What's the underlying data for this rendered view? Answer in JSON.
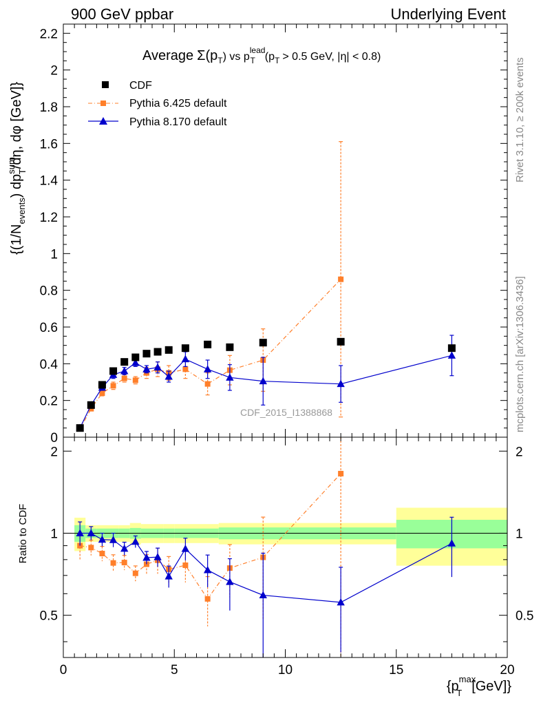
{
  "header": {
    "left": "900 GeV ppbar",
    "right": "Underlying Event"
  },
  "side_labels": {
    "rivet": "Rivet 3.1.10, ≥ 200k events",
    "mcplots": "mcplots.cern.ch [arXiv:1306.3436]"
  },
  "chart_data": {
    "type": "scatter",
    "title_parts": {
      "avg": "Average",
      "sigma": "Σ(p",
      "t1": "T",
      "close": ") vs p",
      "t2": "T",
      "lead": "lead",
      "cond": "(p",
      "t3": "T",
      "cond_rest": "> 0.5 GeV, |η| < 0.8)"
    },
    "ylabel_parts": {
      "a": "{(1/N",
      "events": "events",
      "b": ") dp",
      "T": "T",
      "sum": "sum",
      "c": "/dη, dφ [GeV]}"
    },
    "xlabel_parts": {
      "a": "{p",
      "T": "T",
      "max": "max",
      "b": "[GeV]}"
    },
    "ratio_ylabel": "Ratio to CDF",
    "watermark": "CDF_2015_I1388868",
    "xlim": [
      0,
      20
    ],
    "ylim": [
      0,
      2.25
    ],
    "ratio_ylim": [
      0.35,
      2.25
    ],
    "x_ticks": [
      "0",
      "5",
      "10",
      "15",
      "20"
    ],
    "y_ticks": [
      {
        "v": 0,
        "l": "0"
      },
      {
        "v": 0.2,
        "l": "0.2"
      },
      {
        "v": 0.4,
        "l": "0.4"
      },
      {
        "v": 0.6,
        "l": "0.6"
      },
      {
        "v": 0.8,
        "l": "0.8"
      },
      {
        "v": 1,
        "l": "1"
      },
      {
        "v": 1.2,
        "l": "1.2"
      },
      {
        "v": 1.4,
        "l": "1.4"
      },
      {
        "v": 1.6,
        "l": "1.6"
      },
      {
        "v": 1.8,
        "l": "1.8"
      },
      {
        "v": 2,
        "l": "2"
      },
      {
        "v": 2.2,
        "l": "2.2"
      }
    ],
    "ratio_ticks": [
      {
        "v": 0.5,
        "l": "0.5"
      },
      {
        "v": 1,
        "l": "1"
      },
      {
        "v": 2,
        "l": "2"
      }
    ],
    "cdf_bins": [
      [
        0.5,
        1.0
      ],
      [
        1.0,
        1.5
      ],
      [
        1.5,
        2.0
      ],
      [
        2.0,
        2.5
      ],
      [
        2.5,
        3.0
      ],
      [
        3.0,
        3.5
      ],
      [
        3.5,
        4.0
      ],
      [
        4.0,
        4.5
      ],
      [
        4.5,
        5.0
      ],
      [
        5.0,
        6.0
      ],
      [
        6.0,
        7.0
      ],
      [
        7.0,
        8.0
      ],
      [
        8.0,
        10.0
      ],
      [
        10.0,
        15.0
      ],
      [
        15.0,
        20.0
      ]
    ],
    "series": [
      {
        "name": "CDF",
        "color": "#000000",
        "marker": "square",
        "x": [
          0.75,
          1.25,
          1.75,
          2.25,
          2.75,
          3.25,
          3.75,
          4.25,
          4.75,
          5.5,
          6.5,
          7.5,
          9.0,
          12.5,
          17.5
        ],
        "y": [
          0.05,
          0.175,
          0.285,
          0.36,
          0.41,
          0.435,
          0.455,
          0.465,
          0.475,
          0.485,
          0.505,
          0.49,
          0.515,
          0.52,
          0.485
        ],
        "band_inner": [
          0.07,
          0.04,
          0.04,
          0.04,
          0.04,
          0.045,
          0.04,
          0.04,
          0.04,
          0.04,
          0.04,
          0.05,
          0.05,
          0.05,
          0.12
        ],
        "band_outer": [
          0.14,
          0.07,
          0.07,
          0.07,
          0.07,
          0.09,
          0.08,
          0.08,
          0.08,
          0.08,
          0.08,
          0.09,
          0.09,
          0.09,
          0.24
        ]
      },
      {
        "name": "Pythia 6.425 default",
        "color": "#ff7f2a",
        "marker": "smallsquare",
        "line": "dashdot",
        "x": [
          0.75,
          1.25,
          1.75,
          2.25,
          2.75,
          3.25,
          3.75,
          4.25,
          4.75,
          5.5,
          6.5,
          7.5,
          9.0,
          12.5
        ],
        "y": [
          0.045,
          0.155,
          0.24,
          0.28,
          0.32,
          0.31,
          0.35,
          0.37,
          0.35,
          0.37,
          0.29,
          0.365,
          0.42,
          0.86
        ],
        "err": [
          0.005,
          0.01,
          0.015,
          0.02,
          0.02,
          0.02,
          0.03,
          0.04,
          0.04,
          0.05,
          0.06,
          0.08,
          0.17,
          0.75
        ]
      },
      {
        "name": "Pythia 8.170 default",
        "color": "#0000cc",
        "marker": "triangle",
        "line": "solid",
        "x": [
          0.75,
          1.25,
          1.75,
          2.25,
          2.75,
          3.25,
          3.75,
          4.25,
          4.75,
          5.5,
          6.5,
          7.5,
          9.0,
          12.5,
          17.5
        ],
        "y": [
          0.05,
          0.175,
          0.27,
          0.34,
          0.36,
          0.405,
          0.37,
          0.38,
          0.33,
          0.425,
          0.37,
          0.325,
          0.305,
          0.29,
          0.445
        ],
        "err": [
          0.005,
          0.01,
          0.015,
          0.02,
          0.02,
          0.02,
          0.02,
          0.03,
          0.03,
          0.04,
          0.05,
          0.07,
          0.13,
          0.1,
          0.11
        ]
      }
    ]
  }
}
